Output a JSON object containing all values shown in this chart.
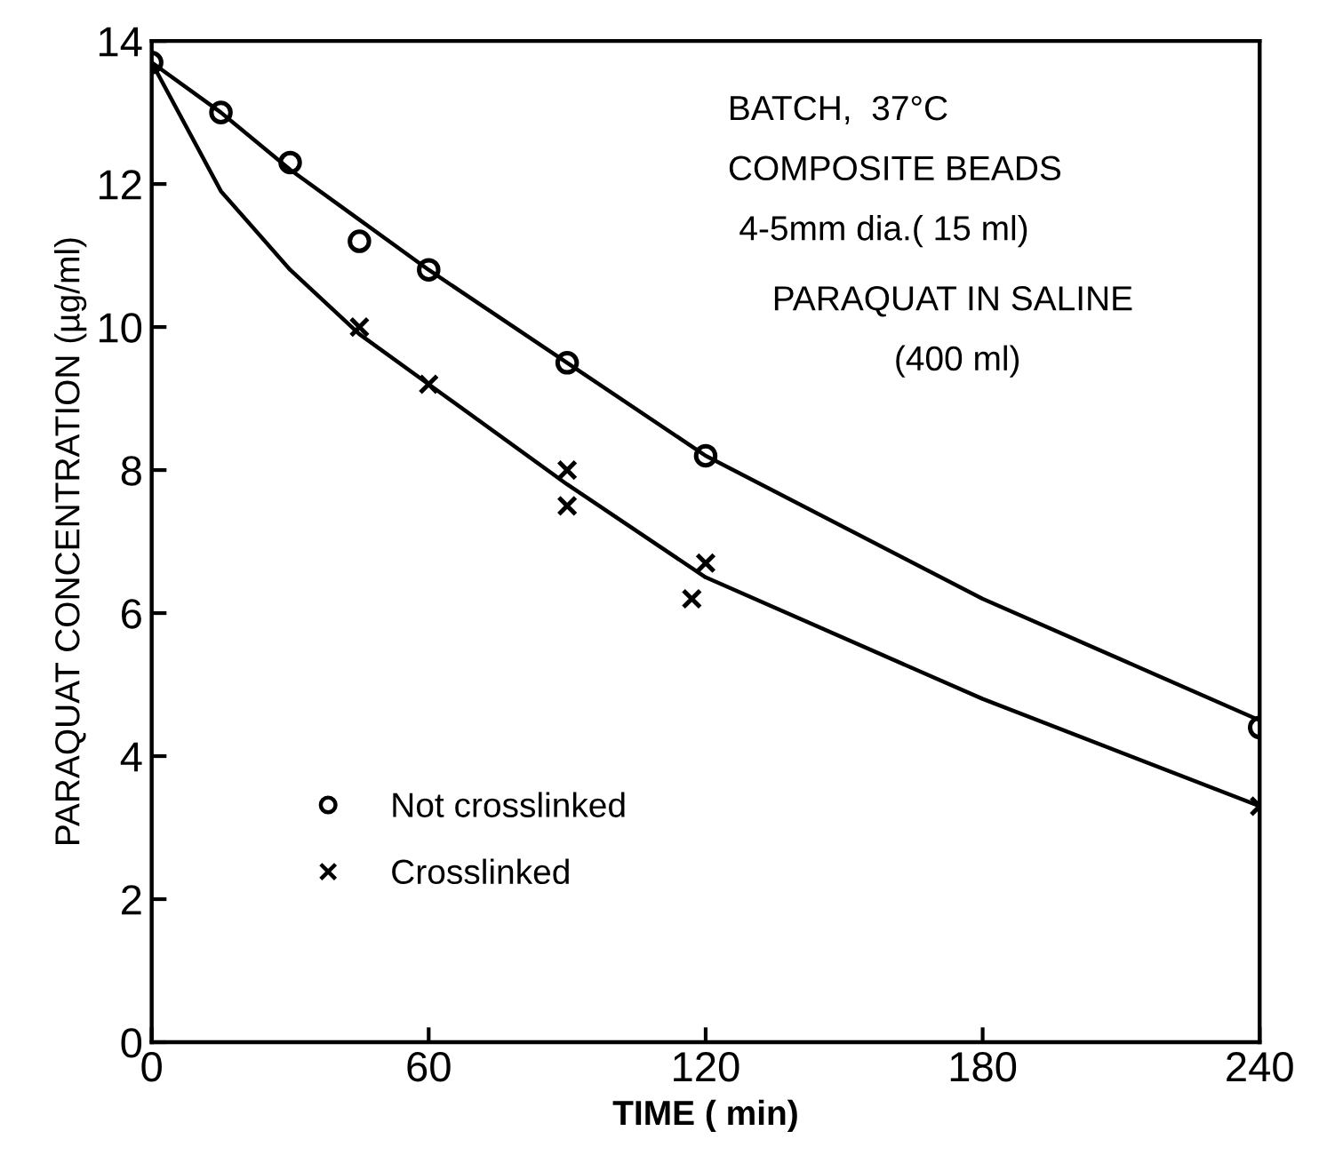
{
  "chart_data": {
    "type": "scatter",
    "xlabel": "TIME ( min)",
    "ylabel": "PARAQUAT CONCENTRATION (µg/ml)",
    "xlim": [
      0,
      240
    ],
    "ylim": [
      0,
      14
    ],
    "xticks": [
      0,
      60,
      120,
      180,
      240
    ],
    "yticks": [
      0,
      2,
      4,
      6,
      8,
      10,
      12,
      14
    ],
    "grid": false,
    "legend": "lower left",
    "annotations": [
      "BATCH,  37°C",
      "COMPOSITE BEADS",
      "4-5mm dia.( 15 ml)",
      "PARAQUAT IN SALINE",
      "(400 ml)"
    ],
    "series": [
      {
        "name": "Not crosslinked",
        "marker": "circle",
        "color": "#000000",
        "x": [
          0,
          15,
          30,
          45,
          60,
          90,
          120,
          240
        ],
        "values": [
          13.7,
          13.0,
          12.3,
          11.2,
          10.8,
          9.5,
          8.2,
          4.4
        ]
      },
      {
        "name": "Crosslinked",
        "marker": "cross",
        "color": "#000000",
        "x": [
          45,
          60,
          90,
          90,
          120,
          117,
          240
        ],
        "values": [
          10.0,
          9.2,
          8.0,
          7.5,
          6.7,
          6.2,
          3.3
        ]
      },
      {
        "type": "line",
        "marker": "none",
        "line_style": "solid",
        "color": "#000000",
        "x": [
          0,
          15,
          30,
          45,
          60,
          90,
          120,
          180,
          240
        ],
        "values": [
          13.7,
          13.0,
          12.2,
          11.5,
          10.8,
          9.5,
          8.2,
          6.2,
          4.5
        ]
      },
      {
        "type": "line",
        "marker": "none",
        "line_style": "solid",
        "color": "#000000",
        "x": [
          0,
          15,
          30,
          45,
          60,
          90,
          120,
          180,
          240
        ],
        "values": [
          13.7,
          11.9,
          10.8,
          9.9,
          9.2,
          7.8,
          6.5,
          4.8,
          3.3
        ]
      }
    ]
  }
}
